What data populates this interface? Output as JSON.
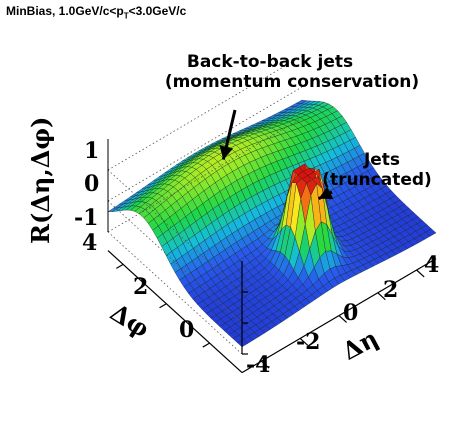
{
  "chart_data": {
    "type": "surface",
    "title": "MinBias, 1.0GeV/c<p",
    "title_sub": "T",
    "title_tail": "<3.0GeV/c",
    "zlabel": "R(Δη,Δφ)",
    "xlabel": "Δη",
    "ylabel": "Δφ",
    "x_range": [
      -5,
      5
    ],
    "y_range": [
      -1.5,
      4.7
    ],
    "z_range": [
      -1,
      2
    ],
    "x_ticks": [
      "-4",
      "-2",
      "0",
      "2",
      "4"
    ],
    "y_ticks": [
      "0",
      "2",
      "4"
    ],
    "z_ticks": [
      "-1",
      "0",
      "1"
    ],
    "annotations": [
      {
        "text": "Back-to-back jets",
        "line2": "(momentum conservation)",
        "target_deta": -1.0,
        "target_dphi": 3.14
      },
      {
        "text": "Jets",
        "line2": "(truncated)",
        "target_deta": 0.0,
        "target_dphi": 0.0
      }
    ],
    "surface": {
      "near_side_peak": {
        "deta": 0.0,
        "dphi": 0.0,
        "z_max_truncated": 2.0
      },
      "away_side_ridge": {
        "dphi": 3.14,
        "z_max": 1.0
      },
      "baseline_min": -1.0
    },
    "colors": {
      "low": "#1b2cc4",
      "mid": "#1fd43c",
      "high": "#e0180e"
    }
  }
}
